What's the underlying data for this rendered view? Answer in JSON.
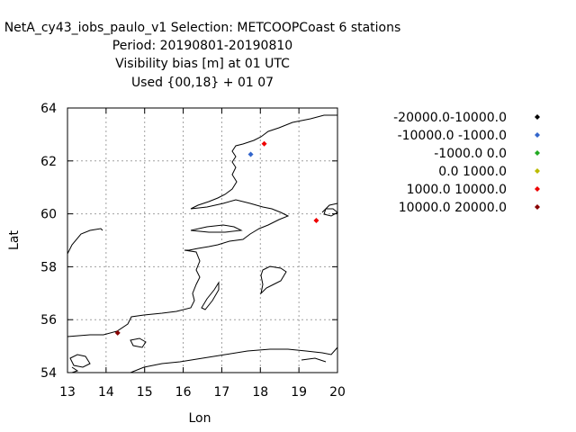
{
  "header": {
    "line1": "NetA_cy43_iobs_paulo_v1   Selection: METCOOPCoast      6 stations",
    "line2": "Period: 20190801-20190810",
    "line3": "Visibility bias [m] at  01 UTC",
    "line4": "Used {00,18} + 01 07"
  },
  "chart_data": {
    "type": "scatter",
    "xlabel": "Lon",
    "ylabel": "Lat",
    "xlim": [
      13,
      20
    ],
    "ylim": [
      54,
      64
    ],
    "x_ticks": [
      "13",
      "14",
      "15",
      "16",
      "17",
      "18",
      "19",
      "20"
    ],
    "y_ticks": [
      "54",
      "56",
      "58",
      "60",
      "62",
      "64"
    ],
    "grid": true,
    "legend_position": "right",
    "legend": [
      {
        "label": "-20000.0-10000.0",
        "color": "#000000"
      },
      {
        "label": "-10000.0 -1000.0",
        "color": "#3366cc"
      },
      {
        "label": "-1000.0 0.0",
        "color": "#22aa22"
      },
      {
        "label": "0.0 1000.0",
        "color": "#bbbb00"
      },
      {
        "label": "1000.0 10000.0",
        "color": "#ee0000"
      },
      {
        "label": "10000.0 20000.0",
        "color": "#880000"
      }
    ],
    "points": [
      {
        "lon": 17.75,
        "lat": 62.25,
        "class": 1
      },
      {
        "lon": 18.1,
        "lat": 62.65,
        "class": 4
      },
      {
        "lon": 19.45,
        "lat": 59.75,
        "class": 4
      },
      {
        "lon": 14.3,
        "lat": 55.5,
        "class": 5
      }
    ]
  }
}
